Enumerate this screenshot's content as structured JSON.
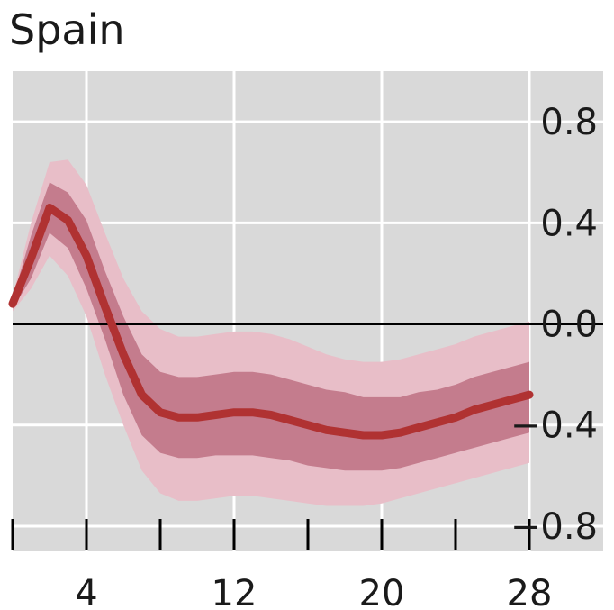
{
  "chart_data": {
    "type": "line",
    "title": "Spain",
    "xlabel": "",
    "ylabel": "",
    "xlim": [
      0,
      32
    ],
    "ylim": [
      -0.9,
      1.0
    ],
    "x_ticks": [
      4,
      12,
      20,
      28
    ],
    "x_tick_labels": [
      "4",
      "12",
      "20",
      "28"
    ],
    "x_minor_ticks": [
      0,
      4,
      8,
      12,
      16,
      20,
      24,
      28
    ],
    "y_ticks": [
      0.8,
      0.4,
      0.0,
      -0.4,
      -0.8
    ],
    "y_tick_labels": [
      "0.8",
      "0.4",
      "0.0",
      "−0.4",
      "−0.8"
    ],
    "grid": true,
    "zero_line": true,
    "colors": {
      "background": "#d9d9d9",
      "grid": "#ffffff",
      "line": "#b03232",
      "inner_band": "#c47c8d",
      "outer_band": "#e8bec8",
      "zero_line": "#000000"
    },
    "x": [
      0,
      1,
      2,
      3,
      4,
      5,
      6,
      7,
      8,
      9,
      10,
      11,
      12,
      13,
      14,
      15,
      16,
      17,
      18,
      19,
      20,
      21,
      22,
      23,
      24,
      25,
      26,
      27,
      28
    ],
    "series": [
      {
        "values": [
          0.08,
          0.26,
          0.46,
          0.41,
          0.27,
          0.07,
          -0.12,
          -0.28,
          -0.35,
          -0.37,
          -0.37,
          -0.36,
          -0.35,
          -0.35,
          -0.36,
          -0.38,
          -0.4,
          -0.42,
          -0.43,
          -0.44,
          -0.44,
          -0.43,
          -0.41,
          -0.39,
          -0.37,
          -0.34,
          -0.32,
          -0.3,
          -0.28
        ],
        "inner_lower": [
          0.06,
          0.18,
          0.36,
          0.3,
          0.14,
          -0.06,
          -0.28,
          -0.44,
          -0.51,
          -0.53,
          -0.53,
          -0.52,
          -0.52,
          -0.52,
          -0.53,
          -0.54,
          -0.56,
          -0.57,
          -0.58,
          -0.58,
          -0.58,
          -0.57,
          -0.55,
          -0.53,
          -0.51,
          -0.49,
          -0.47,
          -0.45,
          -0.43
        ],
        "inner_upper": [
          0.1,
          0.35,
          0.56,
          0.52,
          0.41,
          0.21,
          0.03,
          -0.12,
          -0.19,
          -0.21,
          -0.21,
          -0.2,
          -0.19,
          -0.19,
          -0.2,
          -0.22,
          -0.24,
          -0.26,
          -0.27,
          -0.29,
          -0.29,
          -0.29,
          -0.27,
          -0.26,
          -0.24,
          -0.21,
          -0.19,
          -0.17,
          -0.15
        ],
        "outer_lower": [
          0.05,
          0.14,
          0.27,
          0.19,
          0.03,
          -0.2,
          -0.4,
          -0.58,
          -0.67,
          -0.7,
          -0.7,
          -0.69,
          -0.68,
          -0.68,
          -0.69,
          -0.7,
          -0.71,
          -0.72,
          -0.72,
          -0.72,
          -0.71,
          -0.69,
          -0.67,
          -0.65,
          -0.63,
          -0.61,
          -0.59,
          -0.57,
          -0.55
        ],
        "outer_upper": [
          0.11,
          0.4,
          0.64,
          0.65,
          0.55,
          0.36,
          0.18,
          0.05,
          -0.02,
          -0.05,
          -0.05,
          -0.04,
          -0.03,
          -0.03,
          -0.04,
          -0.06,
          -0.09,
          -0.12,
          -0.14,
          -0.15,
          -0.15,
          -0.14,
          -0.12,
          -0.1,
          -0.08,
          -0.05,
          -0.03,
          -0.01,
          0.01
        ]
      }
    ]
  }
}
